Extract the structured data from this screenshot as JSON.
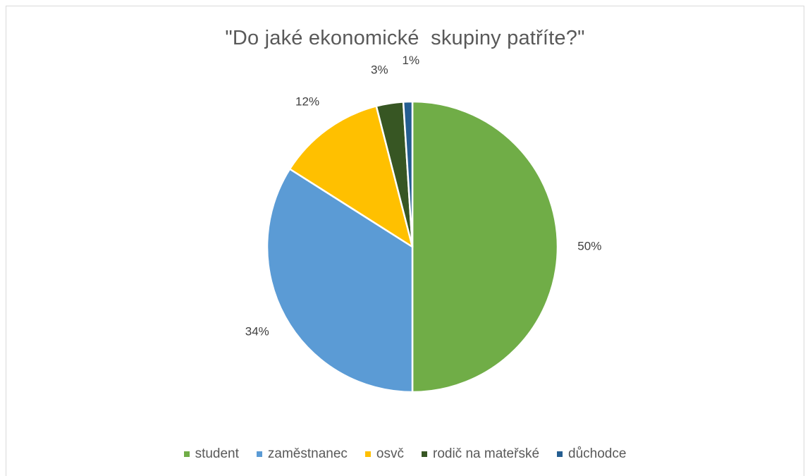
{
  "chart_data": {
    "type": "pie",
    "title": "\"Do jaké ekonomické  skupiny patříte?\"",
    "categories": [
      "student",
      "zaměstnanec",
      "osvč",
      "rodič na mateřské",
      "důchodce"
    ],
    "values": [
      50,
      34,
      12,
      3,
      1
    ],
    "data_labels": [
      "50%",
      "34%",
      "12%",
      "3%",
      "1%"
    ],
    "colors": [
      "#70ad47",
      "#5b9bd5",
      "#ffc000",
      "#375623",
      "#255e91"
    ],
    "legend_position": "bottom",
    "start_angle_deg": 0,
    "direction": "clockwise"
  }
}
